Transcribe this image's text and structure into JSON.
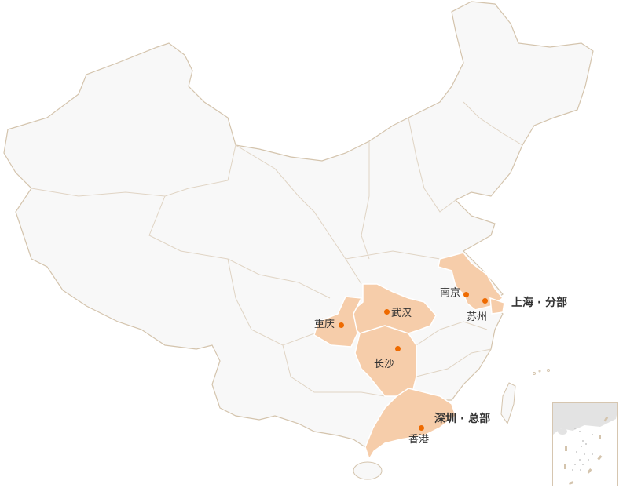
{
  "colors": {
    "land": "#f8f8f8",
    "border": "#d4c4ad",
    "highlight": "#f6cdaa",
    "dot": "#ee6a00",
    "inset_land": "#e3e3e3"
  },
  "offices": [
    {
      "name": "上海 · 分部",
      "type": "branch"
    },
    {
      "name": "深圳 · 总部",
      "type": "headquarters"
    }
  ],
  "cities": [
    {
      "name": "南京"
    },
    {
      "name": "苏州"
    },
    {
      "name": "武汉"
    },
    {
      "name": "重庆"
    },
    {
      "name": "长沙"
    },
    {
      "name": "香港"
    }
  ]
}
